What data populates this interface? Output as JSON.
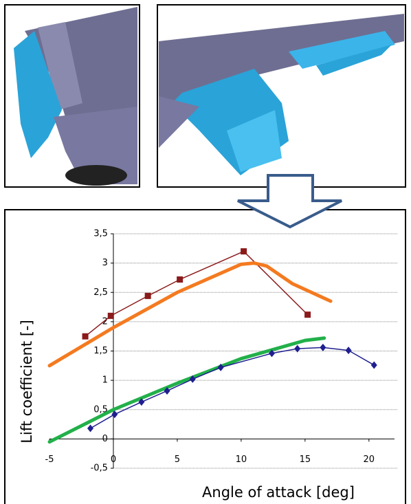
{
  "chart_data": {
    "type": "line",
    "xlabel": "Angle of attack [deg]",
    "ylabel": "Lift coefficient [-]",
    "xlim": [
      -5,
      22
    ],
    "ylim": [
      -0.5,
      3.5
    ],
    "xticks": [
      -5,
      0,
      5,
      10,
      15,
      20
    ],
    "yticks": [
      {
        "value": -0.5,
        "label": "-0,5"
      },
      0,
      {
        "value": 0.5,
        "label": "0,5"
      },
      1,
      {
        "value": 1.5,
        "label": "1,5"
      },
      2,
      {
        "value": 2.5,
        "label": "2,5"
      },
      3,
      {
        "value": 3.5,
        "label": "3,5"
      }
    ],
    "grid": true,
    "series": [
      {
        "color": "#8b1a1a",
        "marker": "square",
        "line_width": 1.5,
        "x": [
          -2.2,
          -0.2,
          2.7,
          5.2,
          10.2,
          15.2
        ],
        "values": [
          1.75,
          2.1,
          2.44,
          2.72,
          3.2,
          2.12
        ]
      },
      {
        "color": "#f47a20",
        "marker": null,
        "line_width": 5,
        "x": [
          -5,
          0,
          5,
          10,
          11,
          12,
          14,
          17
        ],
        "values": [
          1.25,
          1.9,
          2.5,
          2.98,
          3.0,
          2.95,
          2.65,
          2.35
        ]
      },
      {
        "color": "#22b04a",
        "marker": null,
        "line_width": 5,
        "x": [
          -5,
          0,
          5,
          10,
          15,
          16.5
        ],
        "values": [
          -0.05,
          0.5,
          0.95,
          1.37,
          1.68,
          1.72
        ]
      },
      {
        "color": "#1f1f8f",
        "marker": "diamond",
        "line_width": 1.5,
        "x": [
          -1.8,
          0.1,
          2.2,
          4.2,
          6.2,
          8.4,
          12.4,
          14.4,
          16.4,
          18.4,
          20.4
        ],
        "values": [
          0.18,
          0.42,
          0.63,
          0.82,
          1.02,
          1.22,
          1.46,
          1.54,
          1.56,
          1.51,
          1.26
        ]
      }
    ]
  }
}
